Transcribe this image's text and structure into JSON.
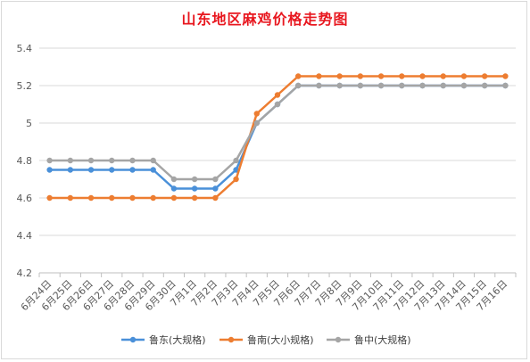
{
  "chart_data": {
    "type": "line",
    "title": "山东地区麻鸡价格走势图",
    "categories": [
      "6月24日",
      "6月25日",
      "6月26日",
      "6月27日",
      "6月28日",
      "6月29日",
      "6月30日",
      "7月1日",
      "7月2日",
      "7月3日",
      "7月4日",
      "7月5日",
      "7月6日",
      "7月7日",
      "7月8日",
      "7月9日",
      "7月10日",
      "7月11日",
      "7月12日",
      "7月13日",
      "7月14日",
      "7月15日",
      "7月16日"
    ],
    "series": [
      {
        "name": "鲁东(大规格)",
        "color": "#4a90d9",
        "values": [
          4.75,
          4.75,
          4.75,
          4.75,
          4.75,
          4.75,
          4.65,
          4.65,
          4.65,
          4.75,
          5.0,
          5.1,
          5.2,
          5.2,
          5.2,
          5.2,
          5.2,
          5.2,
          5.2,
          5.2,
          5.2,
          5.2,
          5.2
        ]
      },
      {
        "name": "鲁南(大小规格)",
        "color": "#ed7d31",
        "values": [
          4.6,
          4.6,
          4.6,
          4.6,
          4.6,
          4.6,
          4.6,
          4.6,
          4.6,
          4.7,
          5.05,
          5.15,
          5.25,
          5.25,
          5.25,
          5.25,
          5.25,
          5.25,
          5.25,
          5.25,
          5.25,
          5.25,
          5.25
        ]
      },
      {
        "name": "鲁中(大规格)",
        "color": "#a5a5a5",
        "values": [
          4.8,
          4.8,
          4.8,
          4.8,
          4.8,
          4.8,
          4.7,
          4.7,
          4.7,
          4.8,
          5.0,
          5.1,
          5.2,
          5.2,
          5.2,
          5.2,
          5.2,
          5.2,
          5.2,
          5.2,
          5.2,
          5.2,
          5.2
        ]
      }
    ],
    "yticks": [
      "4.2",
      "4.4",
      "4.6",
      "4.8",
      "5",
      "5.2",
      "5.4"
    ],
    "ylim": [
      4.2,
      5.4
    ],
    "grid": true,
    "legend": "bottom"
  }
}
